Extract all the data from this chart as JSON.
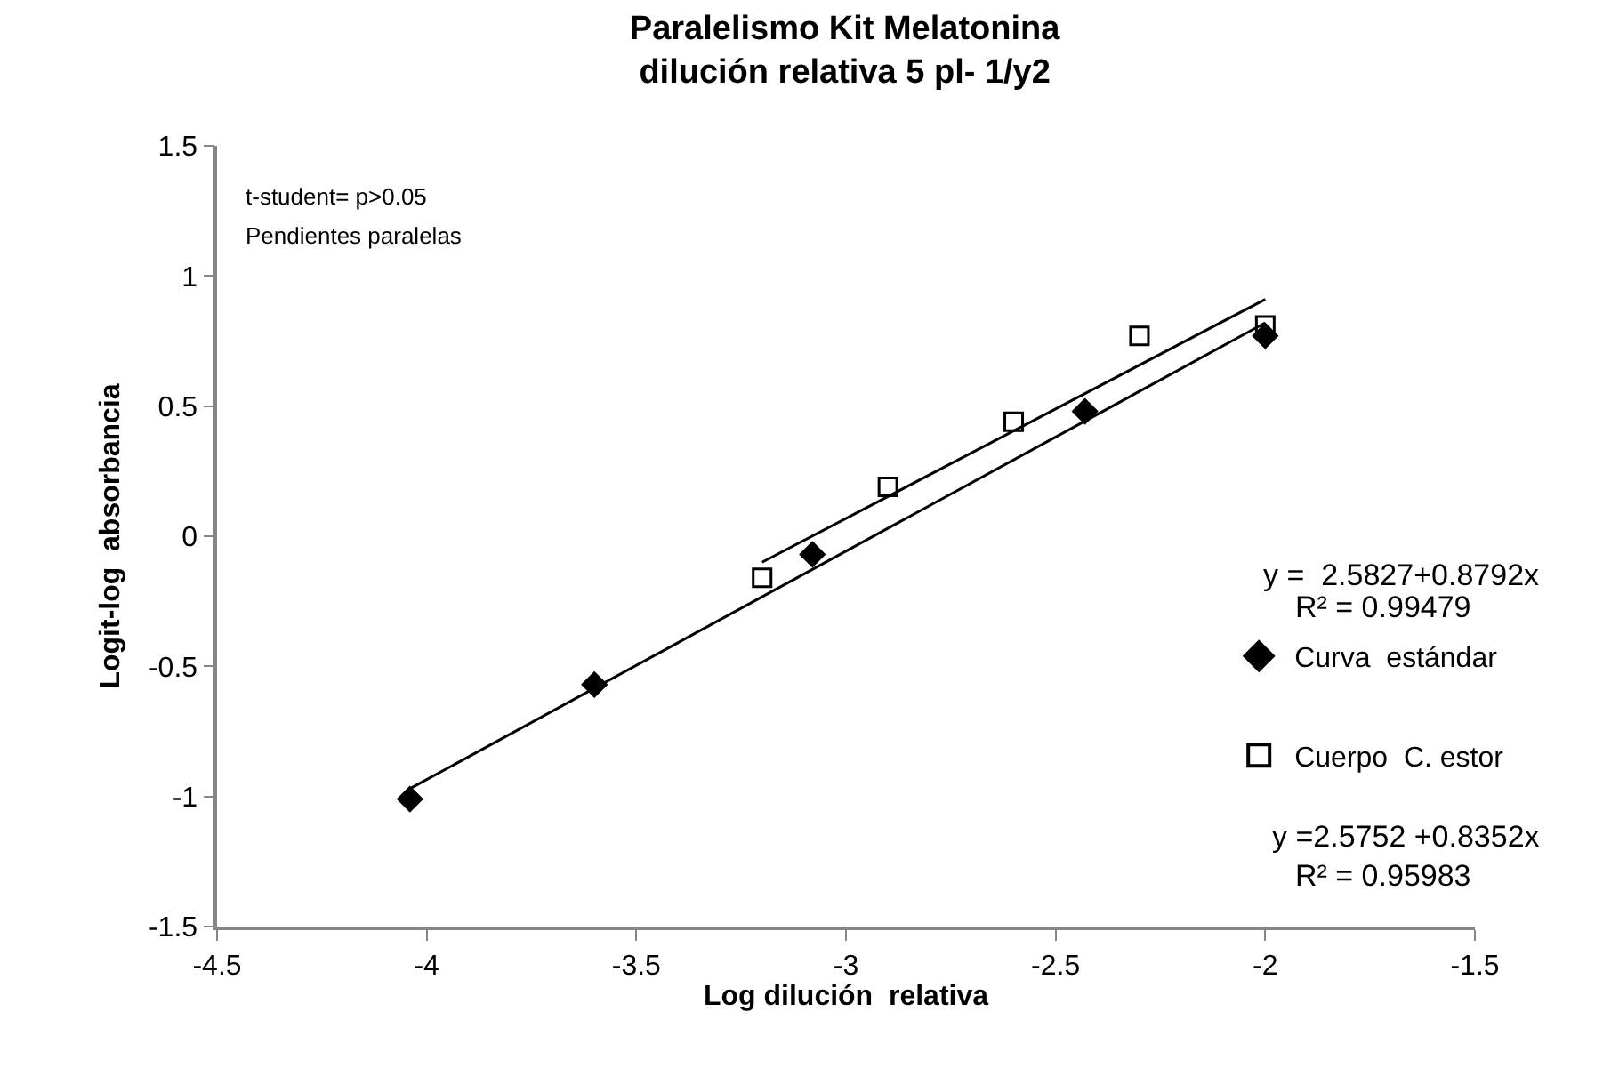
{
  "chart_data": {
    "type": "scatter",
    "title": "Paralelismo Kit Melatonina\ndilución relativa 5 pl- 1/y2",
    "xlabel": "Log dilución  relativa",
    "ylabel": "Logit-log  absorbancia",
    "series": [
      {
        "name": "Curva  estándar",
        "color": "#000000",
        "marker": "diamond",
        "x": [
          -4.04,
          -3.6,
          -3.08,
          -2.43,
          -2.0
        ],
        "values": [
          -1.01,
          -0.57,
          -0.07,
          0.48,
          0.77
        ]
      },
      {
        "name": "Cuerpo  C. estor",
        "color": "#000000",
        "marker": "square",
        "x": [
          -3.2,
          -2.9,
          -2.6,
          -2.3,
          -2.0
        ],
        "values": [
          -0.16,
          0.19,
          0.44,
          0.77,
          0.81
        ]
      },
      {
        "type": "line",
        "color": "#000000",
        "marker": "none",
        "x": [
          -4.04,
          -2.0
        ],
        "values": [
          -0.97,
          0.82
        ]
      },
      {
        "type": "line",
        "color": "#000000",
        "marker": "none",
        "x": [
          -3.2,
          -2.0
        ],
        "values": [
          -0.1,
          0.91
        ]
      }
    ],
    "xlim": [
      -4.5,
      -1.5
    ],
    "xticks": [
      -4.5,
      -4,
      -3.5,
      -3,
      -2.5,
      -2,
      -1.5
    ],
    "ylim": [
      -1.5,
      1.5
    ],
    "yticks": [
      -1.5,
      -1,
      -0.5,
      0,
      0.5,
      1,
      1.5
    ],
    "grid": false,
    "legend": "right",
    "annotations": [
      "t-student= p>0.05",
      "Pendientes paralelas",
      "y =  2.5827+0.8792x",
      "R² = 0.99479",
      "y =2.5752 +0.8352x",
      "R² = 0.95983"
    ]
  }
}
